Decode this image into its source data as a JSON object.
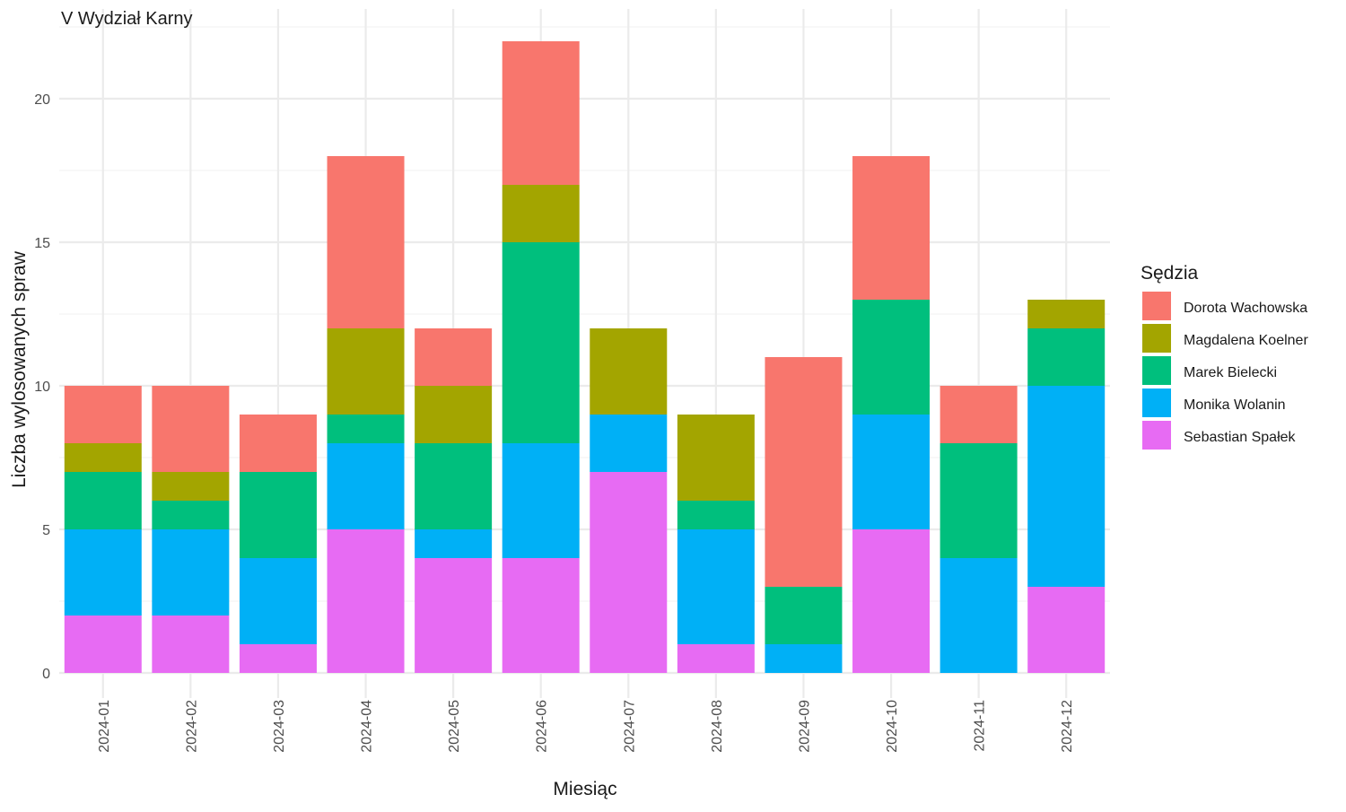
{
  "chart_data": {
    "type": "bar",
    "stacked": true,
    "title": "V Wydział Karny",
    "xlabel": "Miesiąc",
    "ylabel": "Liczba wylosowanych spraw",
    "ylim": [
      0,
      23
    ],
    "yticks": [
      0,
      5,
      10,
      15,
      20
    ],
    "grid": true,
    "legend_position": "right",
    "legend_title": "Sędzia",
    "categories": [
      "2024-01",
      "2024-02",
      "2024-03",
      "2024-04",
      "2024-05",
      "2024-06",
      "2024-07",
      "2024-08",
      "2024-09",
      "2024-10",
      "2024-11",
      "2024-12"
    ],
    "series": [
      {
        "name": "Dorota Wachowska",
        "color": "#F8766D",
        "values": [
          2,
          3,
          2,
          6,
          2,
          5,
          0,
          0,
          8,
          5,
          2,
          0
        ]
      },
      {
        "name": "Magdalena Koelner",
        "color": "#A3A500",
        "values": [
          1,
          1,
          0,
          3,
          2,
          2,
          3,
          3,
          0,
          0,
          0,
          1
        ]
      },
      {
        "name": "Marek Bielecki",
        "color": "#00BF7D",
        "values": [
          2,
          1,
          3,
          1,
          3,
          7,
          0,
          1,
          2,
          4,
          4,
          2
        ]
      },
      {
        "name": "Monika Wolanin",
        "color": "#00B0F6",
        "values": [
          3,
          3,
          3,
          3,
          1,
          4,
          2,
          4,
          1,
          4,
          4,
          7
        ]
      },
      {
        "name": "Sebastian Spałek",
        "color": "#E76BF3",
        "values": [
          2,
          2,
          1,
          5,
          4,
          4,
          7,
          1,
          0,
          5,
          0,
          3
        ]
      }
    ]
  }
}
